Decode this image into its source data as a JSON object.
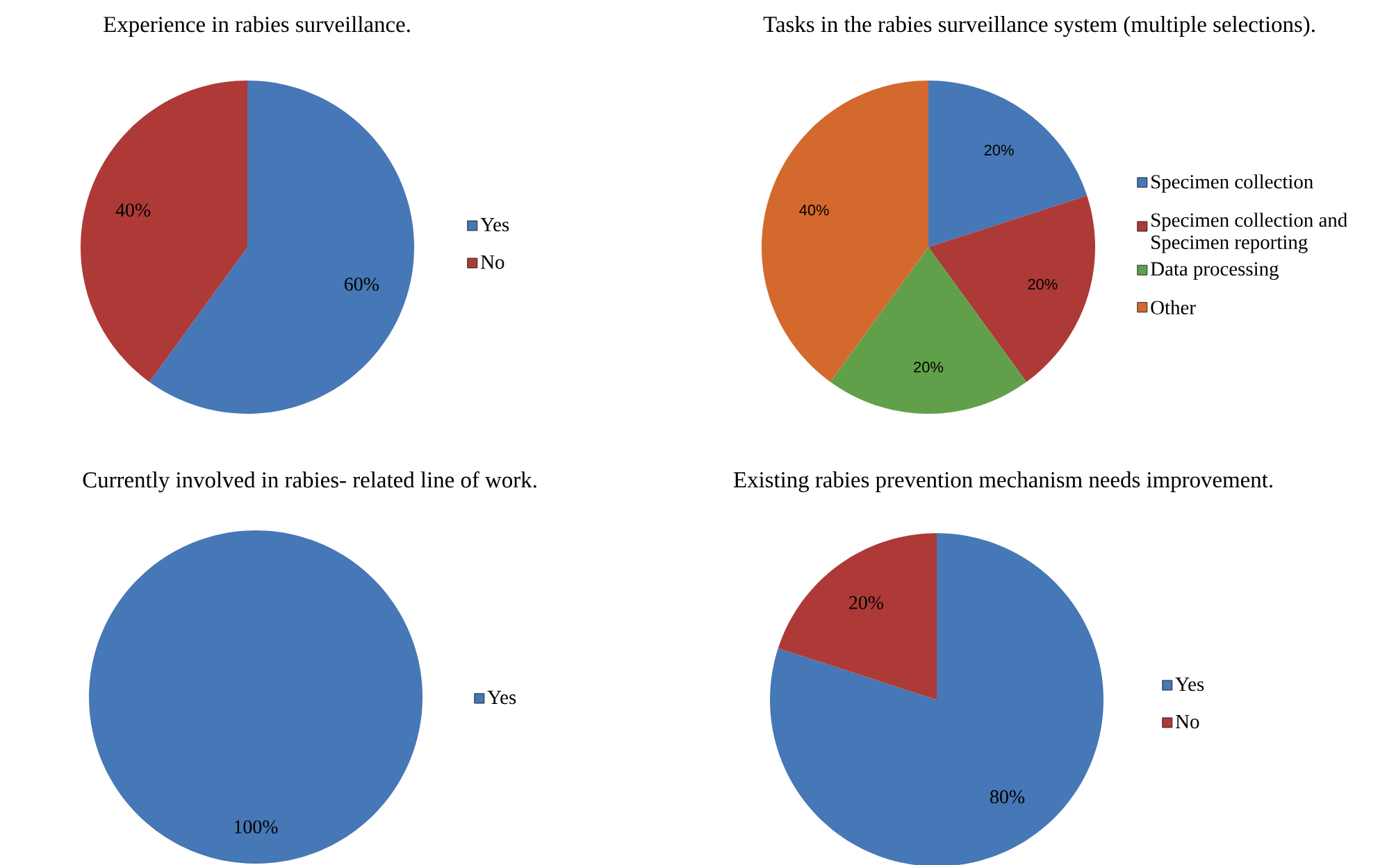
{
  "chart_data": [
    {
      "type": "pie",
      "title": "Experience in rabies surveillance.",
      "categories": [
        "Yes",
        "No"
      ],
      "values": [
        60,
        40
      ],
      "colors": [
        "#4677b6",
        "#ad3a37"
      ],
      "value_labels": [
        "60%",
        "40%"
      ],
      "legend": "right"
    },
    {
      "type": "pie",
      "title": "Tasks in the rabies surveillance system (multiple selections).",
      "categories": [
        "Specimen collection",
        "Specimen collection and Specimen reporting",
        "Data processing",
        "Other"
      ],
      "values": [
        20,
        20,
        20,
        40
      ],
      "colors": [
        "#4677b6",
        "#ad3a37",
        "#61a04a",
        "#d4692d"
      ],
      "value_labels": [
        "20%",
        "20%",
        "20%",
        "40%"
      ],
      "legend": "right"
    },
    {
      "type": "pie",
      "title": "Currently involved in rabies- related line of work.",
      "categories": [
        "Yes"
      ],
      "values": [
        100
      ],
      "colors": [
        "#4677b6"
      ],
      "value_labels": [
        "100%"
      ],
      "legend": "right"
    },
    {
      "type": "pie",
      "title": "Existing rabies prevention mechanism needs improvement.",
      "categories": [
        "Yes",
        "No"
      ],
      "values": [
        80,
        20
      ],
      "colors": [
        "#4677b6",
        "#ad3a37"
      ],
      "value_labels": [
        "80%",
        "20%"
      ],
      "legend": "right"
    }
  ]
}
